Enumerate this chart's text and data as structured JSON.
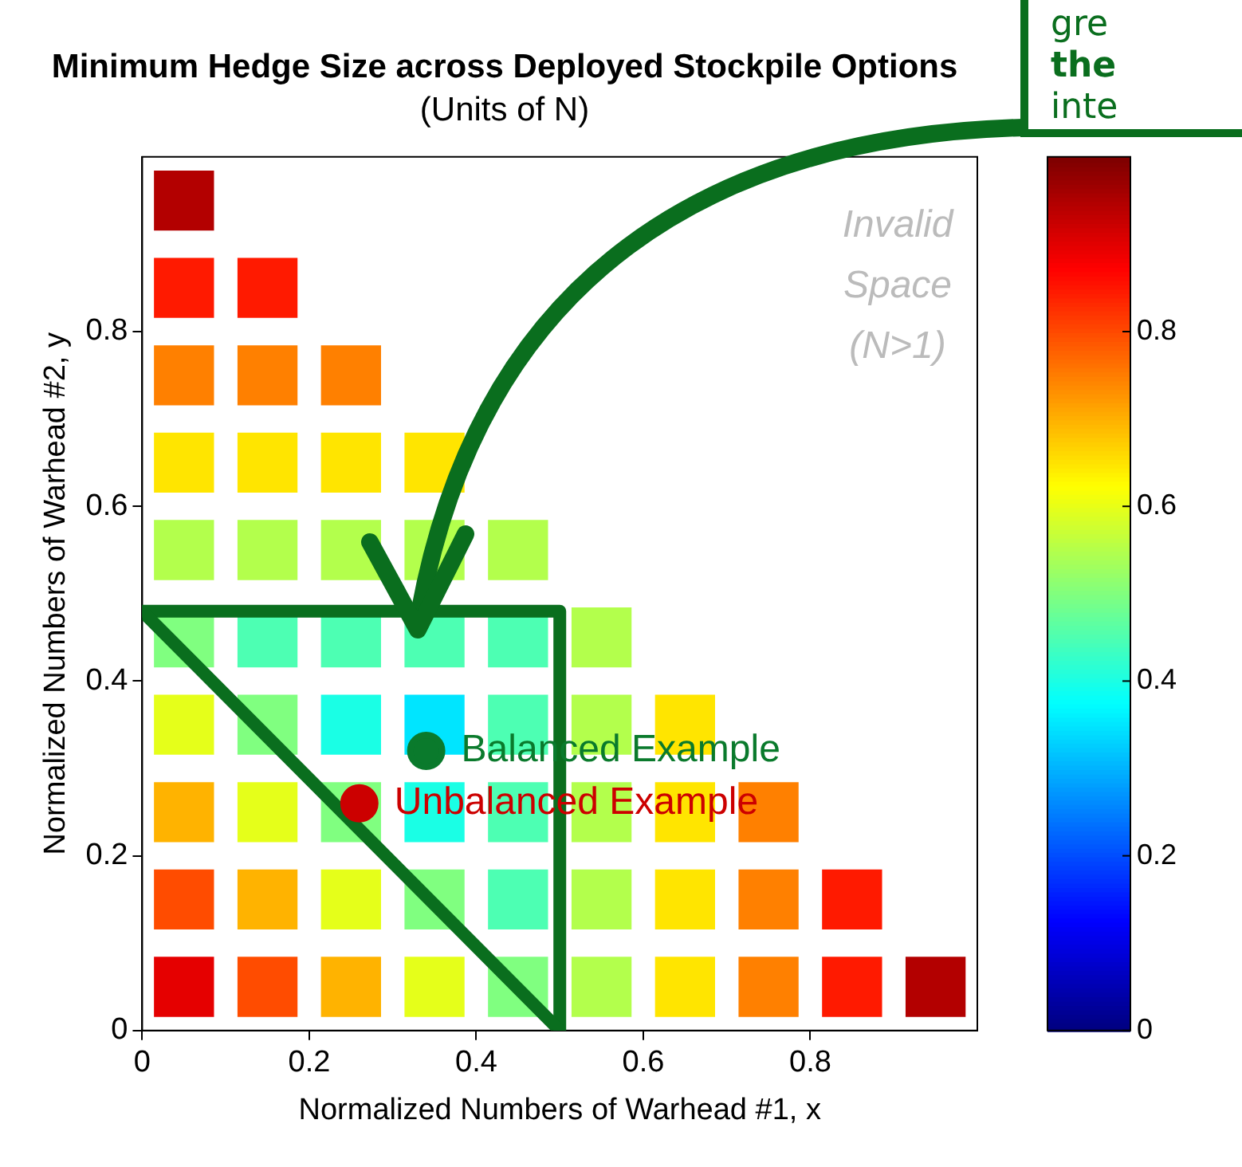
{
  "chart_data": {
    "type": "scatter",
    "title": "Minimum Hedge Size across Deployed Stockpile Options",
    "subtitle": "(Units of N)",
    "xlabel": "Normalized Numbers of Warhead #1, x",
    "ylabel": "Normalized Numbers of Warhead #2, y",
    "xlim": [
      0,
      1
    ],
    "ylim": [
      0,
      1
    ],
    "xticks": [
      0,
      0.2,
      0.4,
      0.6,
      0.8
    ],
    "yticks": [
      0,
      0.2,
      0.4,
      0.6,
      0.8
    ],
    "clim": [
      0,
      1
    ],
    "cticks": [
      0,
      0.2,
      0.4,
      0.6,
      0.8
    ],
    "series": [
      {
        "type": "scatter",
        "marker": "square",
        "x": [
          0.05,
          0.15,
          0.25,
          0.35,
          0.45,
          0.55,
          0.65,
          0.75,
          0.85,
          0.95,
          0.05,
          0.15,
          0.25,
          0.35,
          0.45,
          0.55,
          0.65,
          0.75,
          0.85,
          0.05,
          0.15,
          0.25,
          0.35,
          0.45,
          0.55,
          0.65,
          0.75,
          0.05,
          0.15,
          0.25,
          0.35,
          0.45,
          0.55,
          0.65,
          0.05,
          0.15,
          0.25,
          0.35,
          0.45,
          0.55,
          0.05,
          0.15,
          0.25,
          0.35,
          0.45,
          0.05,
          0.15,
          0.25,
          0.35,
          0.05,
          0.15,
          0.25,
          0.05,
          0.15,
          0.05
        ],
        "values": [
          0.05,
          0.05,
          0.05,
          0.05,
          0.05,
          0.05,
          0.05,
          0.05,
          0.05,
          0.05,
          0.15,
          0.15,
          0.15,
          0.15,
          0.15,
          0.15,
          0.15,
          0.15,
          0.15,
          0.25,
          0.25,
          0.25,
          0.25,
          0.25,
          0.25,
          0.25,
          0.25,
          0.35,
          0.35,
          0.35,
          0.35,
          0.35,
          0.35,
          0.35,
          0.45,
          0.45,
          0.45,
          0.45,
          0.45,
          0.45,
          0.55,
          0.55,
          0.55,
          0.55,
          0.55,
          0.65,
          0.65,
          0.65,
          0.65,
          0.75,
          0.75,
          0.75,
          0.85,
          0.85,
          0.95
        ],
        "cvalues": [
          0.9,
          0.8,
          0.7,
          0.6,
          0.5,
          0.55,
          0.65,
          0.75,
          0.85,
          0.95,
          0.8,
          0.7,
          0.6,
          0.5,
          0.45,
          0.55,
          0.65,
          0.75,
          0.85,
          0.7,
          0.6,
          0.5,
          0.4,
          0.45,
          0.55,
          0.65,
          0.75,
          0.6,
          0.5,
          0.4,
          0.35,
          0.45,
          0.55,
          0.65,
          0.5,
          0.45,
          0.45,
          0.45,
          0.45,
          0.55,
          0.55,
          0.55,
          0.55,
          0.55,
          0.55,
          0.65,
          0.65,
          0.65,
          0.65,
          0.75,
          0.75,
          0.75,
          0.85,
          0.85,
          0.95
        ],
        "colors": [
          "#e60000",
          "#ff4d00",
          "#ffb300",
          "#e6ff1a",
          "#80ff80",
          "#b3ff4d",
          "#ffe600",
          "#ff8000",
          "#ff1a00",
          "#b30000",
          "#ff4d00",
          "#ffb300",
          "#e6ff1a",
          "#80ff80",
          "#4dffb3",
          "#b3ff4d",
          "#ffe600",
          "#ff8000",
          "#ff1a00",
          "#ffb300",
          "#e6ff1a",
          "#80ff80",
          "#1affe6",
          "#4dffb3",
          "#b3ff4d",
          "#ffe600",
          "#ff8000",
          "#e6ff1a",
          "#80ff80",
          "#1affe6",
          "#00e6ff",
          "#4dffb3",
          "#b3ff4d",
          "#ffe600",
          "#80ff80",
          "#4dffb3",
          "#4dffb3",
          "#4dffb3",
          "#4dffb3",
          "#b3ff4d",
          "#b3ff4d",
          "#b3ff4d",
          "#b3ff4d",
          "#b3ff4d",
          "#b3ff4d",
          "#ffe600",
          "#ffe600",
          "#ffe600",
          "#ffe600",
          "#ff8000",
          "#ff8000",
          "#ff8000",
          "#ff1a00",
          "#ff1a00",
          "#b30000"
        ]
      },
      {
        "type": "line",
        "color": "#0a6e1e",
        "x": [
          0,
          0.5,
          0.5
        ],
        "values": [
          0.48,
          0.48,
          0
        ]
      },
      {
        "type": "line",
        "color": "#0a6e1e",
        "x": [
          0,
          0.5
        ],
        "values": [
          0.48,
          0
        ]
      },
      {
        "type": "scatter",
        "marker": "circle",
        "name": "Balanced Example",
        "color": "#0a7a2c",
        "x": [
          0.34
        ],
        "values": [
          0.32
        ]
      },
      {
        "type": "scatter",
        "marker": "circle",
        "name": "Unbalanced Example",
        "color": "#cc0000",
        "x": [
          0.26
        ],
        "values": [
          0.26
        ]
      }
    ],
    "annotations": [
      "Invalid Space (N>1)",
      "gre",
      "the",
      "inte"
    ],
    "grid": false,
    "legend": "center"
  }
}
